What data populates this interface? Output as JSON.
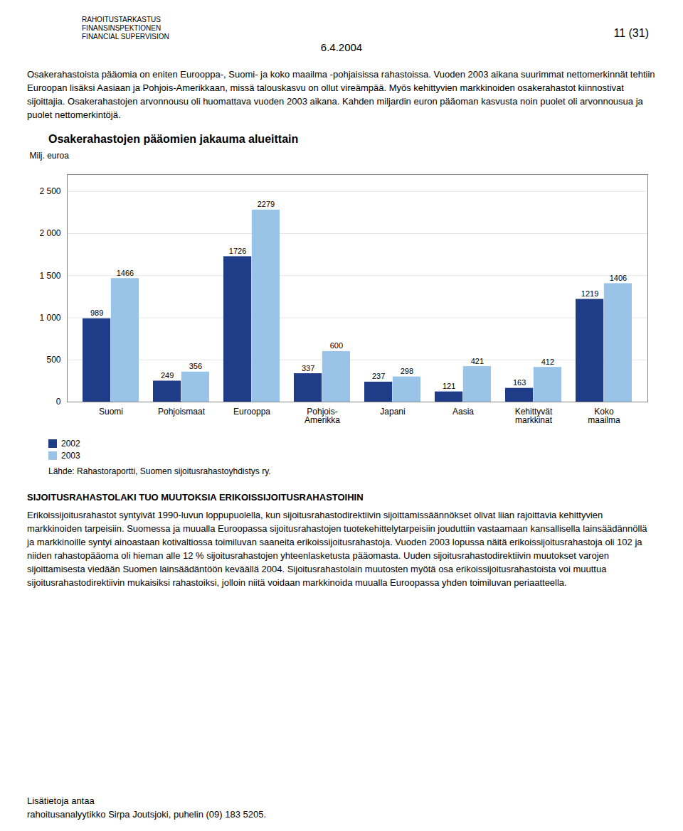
{
  "chart_data": {
    "type": "bar",
    "title": "Osakerahastojen pääomien jakauma alueittain",
    "ylabel": "Milj. euroa",
    "categories": [
      "Suomi",
      "Pohjoismaat",
      "Eurooppa",
      "Pohjois-\nAmerikka",
      "Japani",
      "Aasia",
      "Kehittyvät\nmarkkinat",
      "Koko\nmaailma"
    ],
    "series": [
      {
        "name": "2002",
        "color": "#1F3C88",
        "values": [
          989,
          249,
          1726,
          337,
          237,
          121,
          163,
          1219
        ]
      },
      {
        "name": "2003",
        "color": "#99C4E8",
        "values": [
          1466,
          356,
          2279,
          600,
          298,
          421,
          412,
          1406
        ]
      }
    ],
    "ylim": [
      0,
      2700
    ],
    "yticks": [
      0,
      500,
      {
        "value": 1000,
        "label": "1 000"
      },
      {
        "value": 1500,
        "label": "1 500"
      },
      {
        "value": 2000,
        "label": "2 000"
      },
      {
        "value": 2500,
        "label": "2 500"
      }
    ],
    "grid": true,
    "legend": "bottom",
    "data_labels": true,
    "source": "Lähde: Rahastoraportti, Suomen sijoitusrahastoyhdistys ry."
  },
  "page": {
    "header": [
      "RAHOITUSTARKASTUS",
      "FINANSINSPEKTIONEN",
      "FINANCIAL SUPERVISION"
    ],
    "page_number": "11 (31)",
    "date": "6.4.2004",
    "text_before": "Osakerahastoista pääomia on eniten Eurooppa-, Suomi- ja koko maailma -pohjaisissa rahastoissa. Vuoden 2003 aikana suurimmat nettomerkinnät tehtiin Euroopan lisäksi Aasiaan ja Pohjois-Amerikkaan, missä talouskasvu on ollut vireämpää. Myös kehittyvien markkinoiden osakerahastot kiinnostivat sijoittajia. Osakerahastojen arvonnousu oli huomattava vuoden 2003 aikana. Kahden miljardin euron pääoman kasvusta noin puolet oli arvonnousua ja puolet nettomerkintöjä.",
    "section_header": "SIJOITUSRAHASTOLAKI TUO MUUTOKSIA ERIKOISSIJOITUSRAHASTOIHIN",
    "text_after": "Erikoissijoitusrahastot syntyivät 1990-luvun loppupuolella, kun sijoitusrahastodirektiivin sijoittamissäännökset olivat liian rajoittavia kehittyvien markkinoiden tarpeisiin. Suomessa ja muualla Euroopassa sijoitusrahastojen tuotekehittelytarpeisiin jouduttiin vastaamaan kansallisella lainsäädännöllä ja markkinoille syntyi ainoastaan kotivaltiossa toimiluvan saaneita erikoissijoitusrahastoja. Vuoden 2003 lopussa näitä erikoissijoitusrahastoja oli 102 ja niiden rahastopääoma oli hieman alle 12 % sijoitusrahastojen yhteenlasketusta pääomasta. Uuden sijoitusrahastodirektiivin muutokset varojen sijoittamisesta viedään Suomen lainsäädäntöön keväällä 2004. Sijoitusrahastolain muutosten myötä osa erikoissijoitusrahastoista voi muuttua sijoitusrahastodirektiivin mukaisiksi rahastoiksi, jolloin niitä voidaan markkinoida muualla Euroopassa yhden toimiluvan periaatteella.",
    "footer": [
      "Lisätietoja antaa",
      "rahoitusanalyytikko Sirpa Joutsjoki, puhelin (09) 183 5205."
    ]
  }
}
